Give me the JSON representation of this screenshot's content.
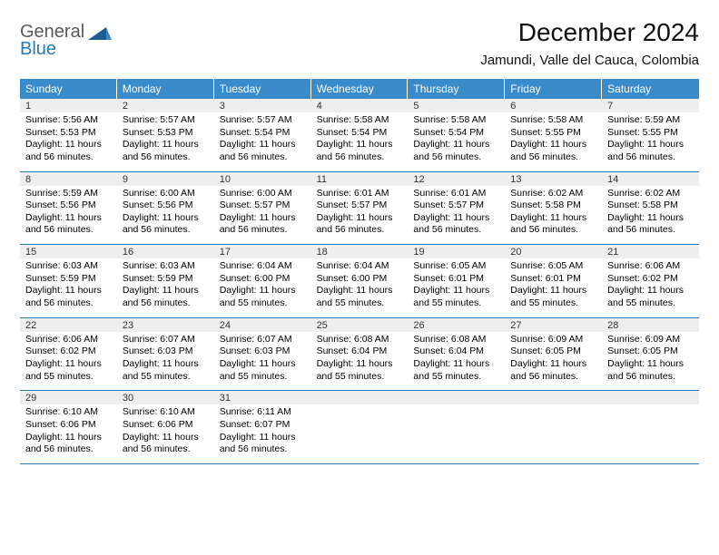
{
  "logo": {
    "word1": "General",
    "word2": "Blue",
    "color1": "#5a5a5a",
    "color2": "#2a7ab8",
    "tri_color": "#1d5c91"
  },
  "title": "December 2024",
  "location": "Jamundi, Valle del Cauca, Colombia",
  "colors": {
    "header_bg": "#3a8bc9",
    "header_fg": "#ffffff",
    "daynum_bg": "#eeeeee",
    "rule": "#2a7ab8"
  },
  "days_of_week": [
    "Sunday",
    "Monday",
    "Tuesday",
    "Wednesday",
    "Thursday",
    "Friday",
    "Saturday"
  ],
  "weeks": [
    [
      {
        "n": "1",
        "sr": "Sunrise: 5:56 AM",
        "ss": "Sunset: 5:53 PM",
        "dl1": "Daylight: 11 hours",
        "dl2": "and 56 minutes."
      },
      {
        "n": "2",
        "sr": "Sunrise: 5:57 AM",
        "ss": "Sunset: 5:53 PM",
        "dl1": "Daylight: 11 hours",
        "dl2": "and 56 minutes."
      },
      {
        "n": "3",
        "sr": "Sunrise: 5:57 AM",
        "ss": "Sunset: 5:54 PM",
        "dl1": "Daylight: 11 hours",
        "dl2": "and 56 minutes."
      },
      {
        "n": "4",
        "sr": "Sunrise: 5:58 AM",
        "ss": "Sunset: 5:54 PM",
        "dl1": "Daylight: 11 hours",
        "dl2": "and 56 minutes."
      },
      {
        "n": "5",
        "sr": "Sunrise: 5:58 AM",
        "ss": "Sunset: 5:54 PM",
        "dl1": "Daylight: 11 hours",
        "dl2": "and 56 minutes."
      },
      {
        "n": "6",
        "sr": "Sunrise: 5:58 AM",
        "ss": "Sunset: 5:55 PM",
        "dl1": "Daylight: 11 hours",
        "dl2": "and 56 minutes."
      },
      {
        "n": "7",
        "sr": "Sunrise: 5:59 AM",
        "ss": "Sunset: 5:55 PM",
        "dl1": "Daylight: 11 hours",
        "dl2": "and 56 minutes."
      }
    ],
    [
      {
        "n": "8",
        "sr": "Sunrise: 5:59 AM",
        "ss": "Sunset: 5:56 PM",
        "dl1": "Daylight: 11 hours",
        "dl2": "and 56 minutes."
      },
      {
        "n": "9",
        "sr": "Sunrise: 6:00 AM",
        "ss": "Sunset: 5:56 PM",
        "dl1": "Daylight: 11 hours",
        "dl2": "and 56 minutes."
      },
      {
        "n": "10",
        "sr": "Sunrise: 6:00 AM",
        "ss": "Sunset: 5:57 PM",
        "dl1": "Daylight: 11 hours",
        "dl2": "and 56 minutes."
      },
      {
        "n": "11",
        "sr": "Sunrise: 6:01 AM",
        "ss": "Sunset: 5:57 PM",
        "dl1": "Daylight: 11 hours",
        "dl2": "and 56 minutes."
      },
      {
        "n": "12",
        "sr": "Sunrise: 6:01 AM",
        "ss": "Sunset: 5:57 PM",
        "dl1": "Daylight: 11 hours",
        "dl2": "and 56 minutes."
      },
      {
        "n": "13",
        "sr": "Sunrise: 6:02 AM",
        "ss": "Sunset: 5:58 PM",
        "dl1": "Daylight: 11 hours",
        "dl2": "and 56 minutes."
      },
      {
        "n": "14",
        "sr": "Sunrise: 6:02 AM",
        "ss": "Sunset: 5:58 PM",
        "dl1": "Daylight: 11 hours",
        "dl2": "and 56 minutes."
      }
    ],
    [
      {
        "n": "15",
        "sr": "Sunrise: 6:03 AM",
        "ss": "Sunset: 5:59 PM",
        "dl1": "Daylight: 11 hours",
        "dl2": "and 56 minutes."
      },
      {
        "n": "16",
        "sr": "Sunrise: 6:03 AM",
        "ss": "Sunset: 5:59 PM",
        "dl1": "Daylight: 11 hours",
        "dl2": "and 56 minutes."
      },
      {
        "n": "17",
        "sr": "Sunrise: 6:04 AM",
        "ss": "Sunset: 6:00 PM",
        "dl1": "Daylight: 11 hours",
        "dl2": "and 55 minutes."
      },
      {
        "n": "18",
        "sr": "Sunrise: 6:04 AM",
        "ss": "Sunset: 6:00 PM",
        "dl1": "Daylight: 11 hours",
        "dl2": "and 55 minutes."
      },
      {
        "n": "19",
        "sr": "Sunrise: 6:05 AM",
        "ss": "Sunset: 6:01 PM",
        "dl1": "Daylight: 11 hours",
        "dl2": "and 55 minutes."
      },
      {
        "n": "20",
        "sr": "Sunrise: 6:05 AM",
        "ss": "Sunset: 6:01 PM",
        "dl1": "Daylight: 11 hours",
        "dl2": "and 55 minutes."
      },
      {
        "n": "21",
        "sr": "Sunrise: 6:06 AM",
        "ss": "Sunset: 6:02 PM",
        "dl1": "Daylight: 11 hours",
        "dl2": "and 55 minutes."
      }
    ],
    [
      {
        "n": "22",
        "sr": "Sunrise: 6:06 AM",
        "ss": "Sunset: 6:02 PM",
        "dl1": "Daylight: 11 hours",
        "dl2": "and 55 minutes."
      },
      {
        "n": "23",
        "sr": "Sunrise: 6:07 AM",
        "ss": "Sunset: 6:03 PM",
        "dl1": "Daylight: 11 hours",
        "dl2": "and 55 minutes."
      },
      {
        "n": "24",
        "sr": "Sunrise: 6:07 AM",
        "ss": "Sunset: 6:03 PM",
        "dl1": "Daylight: 11 hours",
        "dl2": "and 55 minutes."
      },
      {
        "n": "25",
        "sr": "Sunrise: 6:08 AM",
        "ss": "Sunset: 6:04 PM",
        "dl1": "Daylight: 11 hours",
        "dl2": "and 55 minutes."
      },
      {
        "n": "26",
        "sr": "Sunrise: 6:08 AM",
        "ss": "Sunset: 6:04 PM",
        "dl1": "Daylight: 11 hours",
        "dl2": "and 55 minutes."
      },
      {
        "n": "27",
        "sr": "Sunrise: 6:09 AM",
        "ss": "Sunset: 6:05 PM",
        "dl1": "Daylight: 11 hours",
        "dl2": "and 56 minutes."
      },
      {
        "n": "28",
        "sr": "Sunrise: 6:09 AM",
        "ss": "Sunset: 6:05 PM",
        "dl1": "Daylight: 11 hours",
        "dl2": "and 56 minutes."
      }
    ],
    [
      {
        "n": "29",
        "sr": "Sunrise: 6:10 AM",
        "ss": "Sunset: 6:06 PM",
        "dl1": "Daylight: 11 hours",
        "dl2": "and 56 minutes."
      },
      {
        "n": "30",
        "sr": "Sunrise: 6:10 AM",
        "ss": "Sunset: 6:06 PM",
        "dl1": "Daylight: 11 hours",
        "dl2": "and 56 minutes."
      },
      {
        "n": "31",
        "sr": "Sunrise: 6:11 AM",
        "ss": "Sunset: 6:07 PM",
        "dl1": "Daylight: 11 hours",
        "dl2": "and 56 minutes."
      },
      null,
      null,
      null,
      null
    ]
  ]
}
